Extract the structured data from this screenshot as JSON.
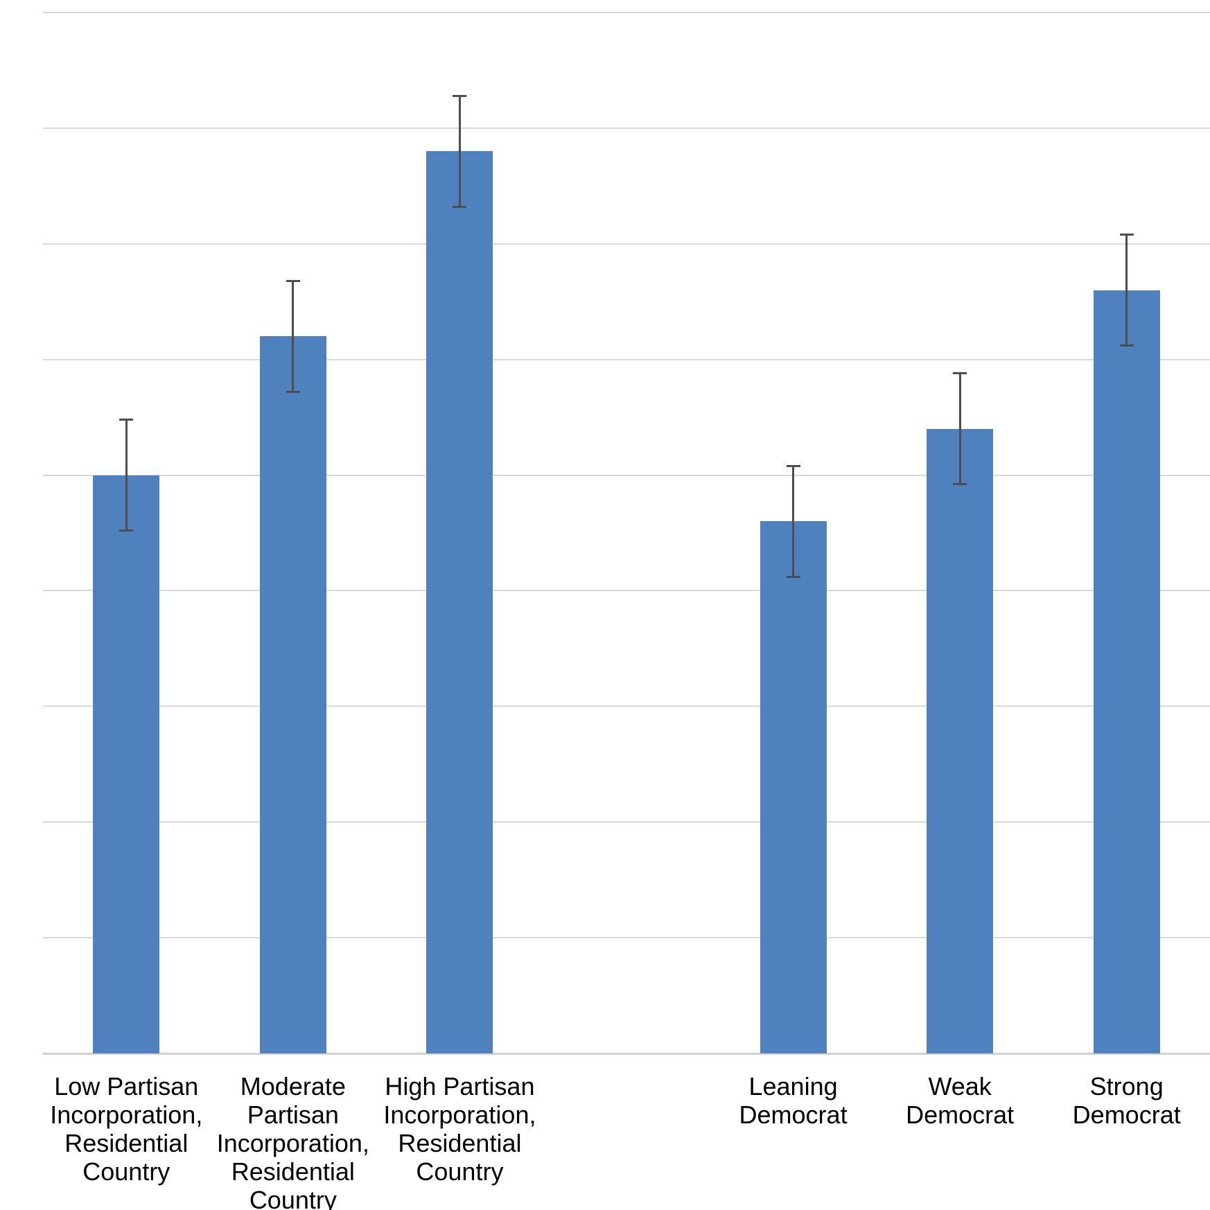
{
  "chart_data": {
    "type": "bar",
    "categories": [
      "Low Partisan\nIncorporation,\nResidential\nCountry",
      "Moderate\nPartisan\nIncorporation,\nResidential\nCountry",
      "High Partisan\nIncorporation,\nResidential\nCountry",
      "Leaning\nDemocrat",
      "Weak Democrat",
      "Strong\nDemocrat"
    ],
    "values": [
      25,
      31,
      39,
      23,
      27,
      33
    ],
    "error_plus": [
      2.4,
      2.4,
      2.4,
      2.4,
      2.4,
      2.4
    ],
    "error_minus": [
      2.4,
      2.4,
      2.4,
      2.4,
      2.4,
      2.4
    ],
    "slots": [
      0,
      1,
      2,
      4,
      5,
      6
    ],
    "slot_count": 7,
    "ylim": [
      0,
      45
    ],
    "ytick_step": 5,
    "ytick_labels": [
      "0",
      "5",
      "10",
      "15",
      "20",
      "25",
      "30",
      "35",
      "40",
      "45"
    ],
    "grid": true,
    "legend": false,
    "xlabel": "",
    "ylabel": "",
    "colors": {
      "bar": "#4E81BD",
      "error_bar": "#4D4D4D",
      "gridline": "#D9D9D9",
      "axis_line": "#D0D0D0",
      "text": "#000000",
      "background": "#FFFFFF"
    }
  }
}
